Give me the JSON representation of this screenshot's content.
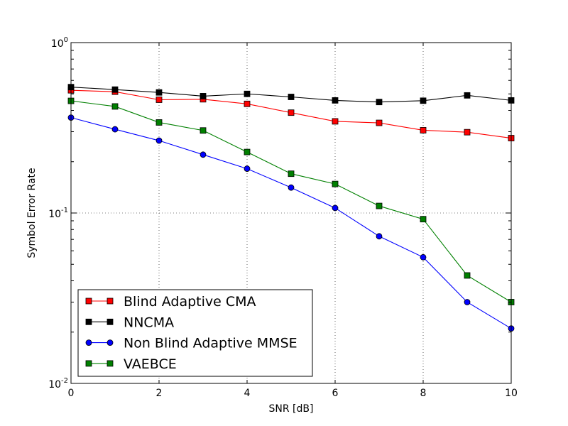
{
  "chart_data": {
    "type": "line",
    "title": "",
    "xlabel": "SNR [dB]",
    "ylabel": "Symbol Error Rate",
    "yscale": "log",
    "xlim": [
      0,
      10
    ],
    "ylim": [
      0.01,
      1
    ],
    "grid": true,
    "legend_position": "lower-left",
    "x": [
      0,
      1,
      2,
      3,
      4,
      5,
      6,
      7,
      8,
      9,
      10
    ],
    "x_ticks": [
      "0",
      "2",
      "4",
      "6",
      "8",
      "10"
    ],
    "y_ticks": [
      {
        "value": 1,
        "base": "10",
        "exp": "0"
      },
      {
        "value": 0.1,
        "base": "10",
        "exp": "-1"
      },
      {
        "value": 0.01,
        "base": "10",
        "exp": "-2"
      }
    ],
    "series": [
      {
        "name": "Blind Adaptive CMA",
        "color": "#ff0000",
        "marker": "square",
        "values": [
          0.525,
          0.515,
          0.462,
          0.465,
          0.437,
          0.388,
          0.345,
          0.338,
          0.306,
          0.298,
          0.275
        ]
      },
      {
        "name": "NNCMA",
        "color": "#000000",
        "marker": "square",
        "values": [
          0.548,
          0.53,
          0.51,
          0.485,
          0.5,
          0.48,
          0.458,
          0.448,
          0.456,
          0.49,
          0.458
        ]
      },
      {
        "name": "Non Blind Adaptive MMSE",
        "color": "#0000ff",
        "marker": "circle",
        "values": [
          0.363,
          0.31,
          0.266,
          0.22,
          0.182,
          0.141,
          0.107,
          0.073,
          0.055,
          0.03,
          0.021
        ]
      },
      {
        "name": "VAEBCE",
        "color": "#008000",
        "marker": "square",
        "values": [
          0.455,
          0.422,
          0.34,
          0.305,
          0.228,
          0.17,
          0.148,
          0.11,
          0.092,
          0.043,
          0.03
        ]
      }
    ]
  }
}
